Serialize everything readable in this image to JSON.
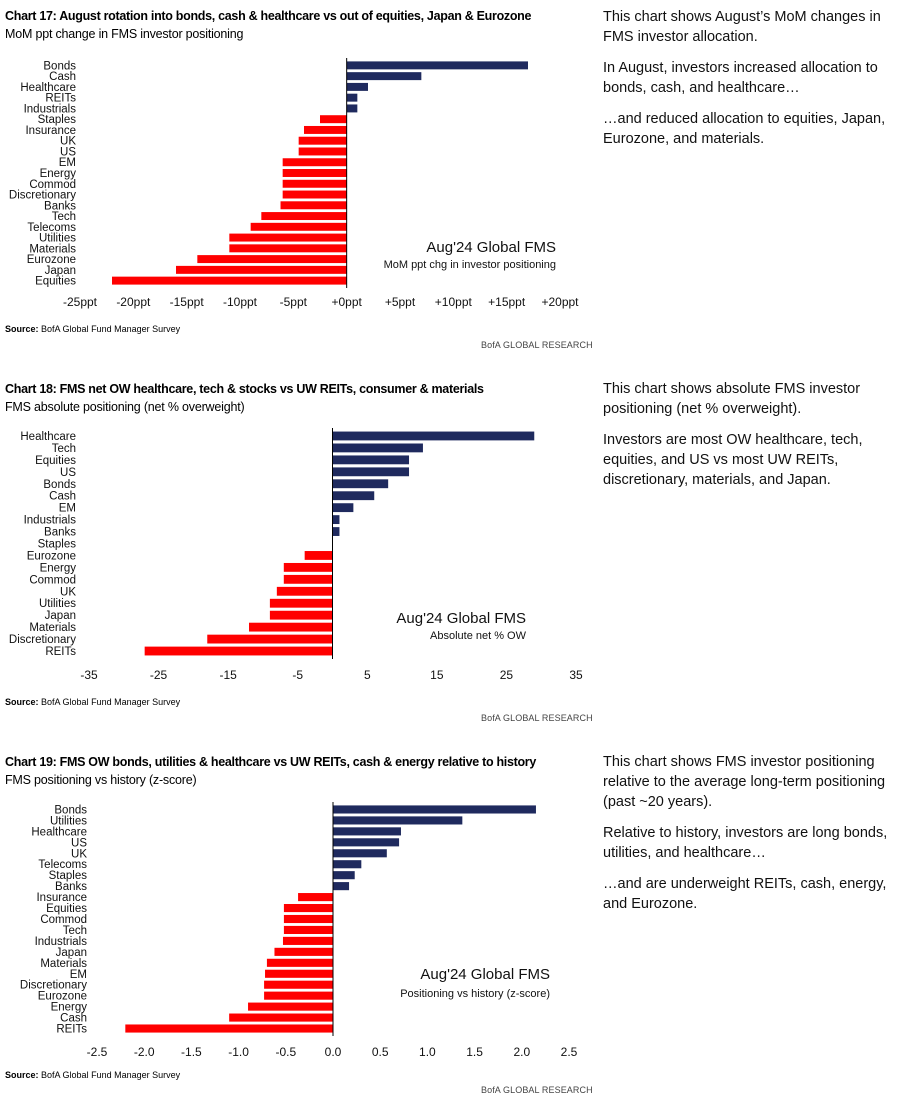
{
  "colors": {
    "positive": "#1f2a5e",
    "negative": "#ff0000",
    "axis": "#000000"
  },
  "source_label": "Source:",
  "source_text": "BofA Global Fund Manager Survey",
  "brand": "BofA GLOBAL RESEARCH",
  "panels": [
    {
      "title": "Chart 17: August rotation into bonds, cash & healthcare vs out of equities, Japan & Eurozone",
      "subtitle": "MoM ppt change in FMS investor positioning",
      "side_text": [
        "This chart shows August’s MoM changes in FMS investor allocation.",
        "In August, investors increased allocation to bonds, cash, and healthcare…",
        "…and reduced allocation to equities, Japan, Eurozone, and materials."
      ]
    },
    {
      "title": "Chart 18: FMS net OW healthcare, tech & stocks vs UW REITs, consumer & materials",
      "subtitle": "FMS absolute positioning (net % overweight)",
      "side_text": [
        "This chart shows absolute FMS investor positioning (net % overweight).",
        "Investors are most OW healthcare, tech, equities, and US vs most UW REITs, discretionary, materials, and Japan."
      ]
    },
    {
      "title": "Chart 19: FMS OW bonds, utilities & healthcare vs UW REITs, cash & energy relative to history",
      "subtitle": "FMS positioning vs history (z-score)",
      "side_text": [
        "This chart shows FMS investor positioning relative to the average long-term positioning (past ~20 years).",
        "Relative to history, investors are long bonds, utilities, and healthcare…",
        "…and are underweight REITs, cash, energy, and Eurozone."
      ]
    }
  ],
  "chart_data": [
    {
      "type": "bar",
      "orientation": "horizontal",
      "categories": [
        "Bonds",
        "Cash",
        "Healthcare",
        "REITs",
        "Industrials",
        "Staples",
        "Insurance",
        "UK",
        "US",
        "EM",
        "Energy",
        "Commod",
        "Discretionary",
        "Banks",
        "Tech",
        "Telecoms",
        "Utilities",
        "Materials",
        "Eurozone",
        "Japan",
        "Equities"
      ],
      "values": [
        17,
        7,
        2,
        1,
        1,
        -2.5,
        -4,
        -4.5,
        -4.5,
        -6,
        -6,
        -6,
        -6,
        -6.2,
        -8,
        -9,
        -11,
        -11,
        -14,
        -16,
        -22
      ],
      "ticks": [
        -25,
        -20,
        -15,
        -10,
        -5,
        0,
        5,
        10,
        15,
        20
      ],
      "tick_labels": [
        "-25ppt",
        "-20ppt",
        "-15ppt",
        "-10ppt",
        "-5ppt",
        "+0ppt",
        "+5ppt",
        "+10ppt",
        "+15ppt",
        "+20ppt"
      ],
      "xlim": [
        -25,
        20
      ],
      "annotation_title": "Aug'24 Global FMS",
      "annotation_subtitle": "MoM ppt chg in investor positioning",
      "grid": false
    },
    {
      "type": "bar",
      "orientation": "horizontal",
      "categories": [
        "Healthcare",
        "Tech",
        "Equities",
        "US",
        "Bonds",
        "Cash",
        "EM",
        "Industrials",
        "Banks",
        "Staples",
        "Eurozone",
        "Energy",
        "Commod",
        "UK",
        "Utilities",
        "Japan",
        "Materials",
        "Discretionary",
        "REITs"
      ],
      "values": [
        29,
        13,
        11,
        11,
        8,
        6,
        3,
        1,
        1,
        0,
        -4,
        -7,
        -7,
        -8,
        -9,
        -9,
        -12,
        -18,
        -27
      ],
      "ticks": [
        -35,
        -25,
        -15,
        -5,
        5,
        15,
        25,
        35
      ],
      "tick_labels": [
        "-35",
        "-25",
        "-15",
        "-5",
        "5",
        "15",
        "25",
        "35"
      ],
      "xlim": [
        -35,
        35
      ],
      "annotation_title": "Aug'24 Global FMS",
      "annotation_subtitle": "Absolute net % OW",
      "grid": false
    },
    {
      "type": "bar",
      "orientation": "horizontal",
      "categories": [
        "Bonds",
        "Utilities",
        "Healthcare",
        "US",
        "UK",
        "Telecoms",
        "Staples",
        "Banks",
        "Insurance",
        "Equities",
        "Commod",
        "Tech",
        "Industrials",
        "Japan",
        "Materials",
        "EM",
        "Discretionary",
        "Eurozone",
        "Energy",
        "Cash",
        "REITs"
      ],
      "values": [
        2.15,
        1.37,
        0.72,
        0.7,
        0.57,
        0.3,
        0.23,
        0.17,
        -0.37,
        -0.52,
        -0.52,
        -0.52,
        -0.53,
        -0.62,
        -0.7,
        -0.72,
        -0.73,
        -0.73,
        -0.9,
        -1.1,
        -2.2
      ],
      "ticks": [
        -2.5,
        -2.0,
        -1.5,
        -1.0,
        -0.5,
        0.0,
        0.5,
        1.0,
        1.5,
        2.0,
        2.5
      ],
      "tick_labels": [
        "-2.5",
        "-2.0",
        "-1.5",
        "-1.0",
        "-0.5",
        "0.0",
        "0.5",
        "1.0",
        "1.5",
        "2.0",
        "2.5"
      ],
      "xlim": [
        -2.5,
        2.5
      ],
      "annotation_title": "Aug'24 Global FMS",
      "annotation_subtitle": "Positioning vs history (z-score)",
      "grid": false
    }
  ]
}
